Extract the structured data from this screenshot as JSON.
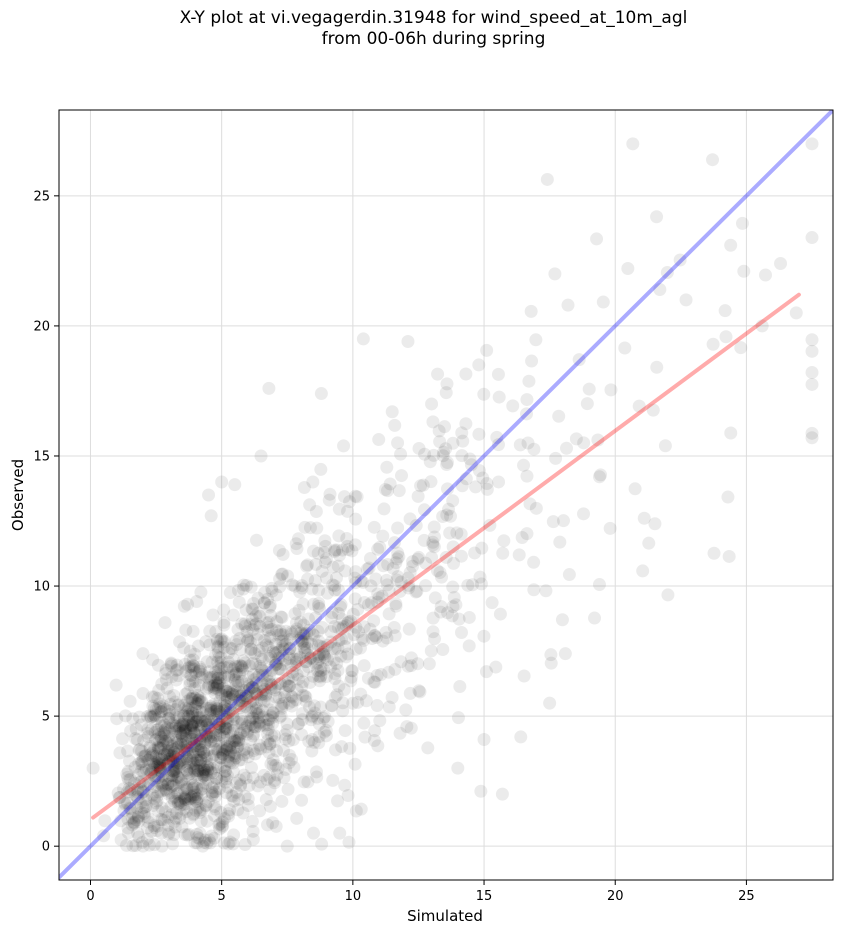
{
  "chart_data": {
    "type": "scatter",
    "title_line1": "X-Y plot at vi.vegagerdin.31948 for wind_speed_at_10m_agl",
    "title_line2": "from 00-06h during spring",
    "xlabel": "Simulated",
    "ylabel": "Observed",
    "xlim": [
      -1.2,
      28.3
    ],
    "ylim": [
      -1.3,
      28.3
    ],
    "xticks": [
      0,
      5,
      10,
      15,
      20,
      25
    ],
    "yticks": [
      0,
      5,
      10,
      15,
      20,
      25
    ],
    "grid": true,
    "colors": {
      "points": "#000000",
      "identity_line": "#0000ff",
      "fit_line": "#ff0000",
      "grid": "#dddddd"
    },
    "series": [
      {
        "type": "scatter",
        "point_count": 1800,
        "sample_points": [
          [
            0.1,
            3.0
          ],
          [
            0.5,
            0.4
          ],
          [
            1.0,
            4.9
          ],
          [
            2.0,
            7.4
          ],
          [
            3.7,
            9.3
          ],
          [
            4.5,
            13.5
          ],
          [
            4.6,
            12.7
          ],
          [
            5.0,
            14.0
          ],
          [
            5.5,
            13.9
          ],
          [
            6.5,
            15.0
          ],
          [
            6.8,
            17.6
          ],
          [
            8.8,
            17.4
          ],
          [
            12.1,
            19.4
          ],
          [
            10.4,
            19.5
          ],
          [
            14.0,
            3.0
          ],
          [
            15.0,
            4.1
          ],
          [
            15.7,
            2.0
          ],
          [
            17.7,
            22.0
          ],
          [
            18.2,
            20.8
          ],
          [
            21.7,
            21.4
          ],
          [
            24.4,
            23.1
          ],
          [
            24.9,
            22.1
          ],
          [
            26.3,
            22.4
          ],
          [
            26.9,
            20.5
          ],
          [
            25.6,
            20.0
          ],
          [
            19.4,
            14.2
          ],
          [
            18.1,
            7.4
          ],
          [
            17.5,
            5.5
          ],
          [
            16.4,
            4.2
          ],
          [
            8.5,
            0.5
          ],
          [
            9.5,
            0.5
          ],
          [
            7.5,
            0.0
          ],
          [
            2.0,
            0.0
          ],
          [
            14.8,
            18.5
          ],
          [
            13.0,
            17.0
          ],
          [
            11.5,
            16.7
          ]
        ]
      },
      {
        "type": "line",
        "role": "identity",
        "from": [
          -1.2,
          -1.2
        ],
        "to": [
          28.3,
          28.3
        ]
      },
      {
        "type": "line",
        "role": "linear-fit",
        "from": [
          0.1,
          1.1
        ],
        "to": [
          27.0,
          21.2
        ]
      }
    ]
  }
}
